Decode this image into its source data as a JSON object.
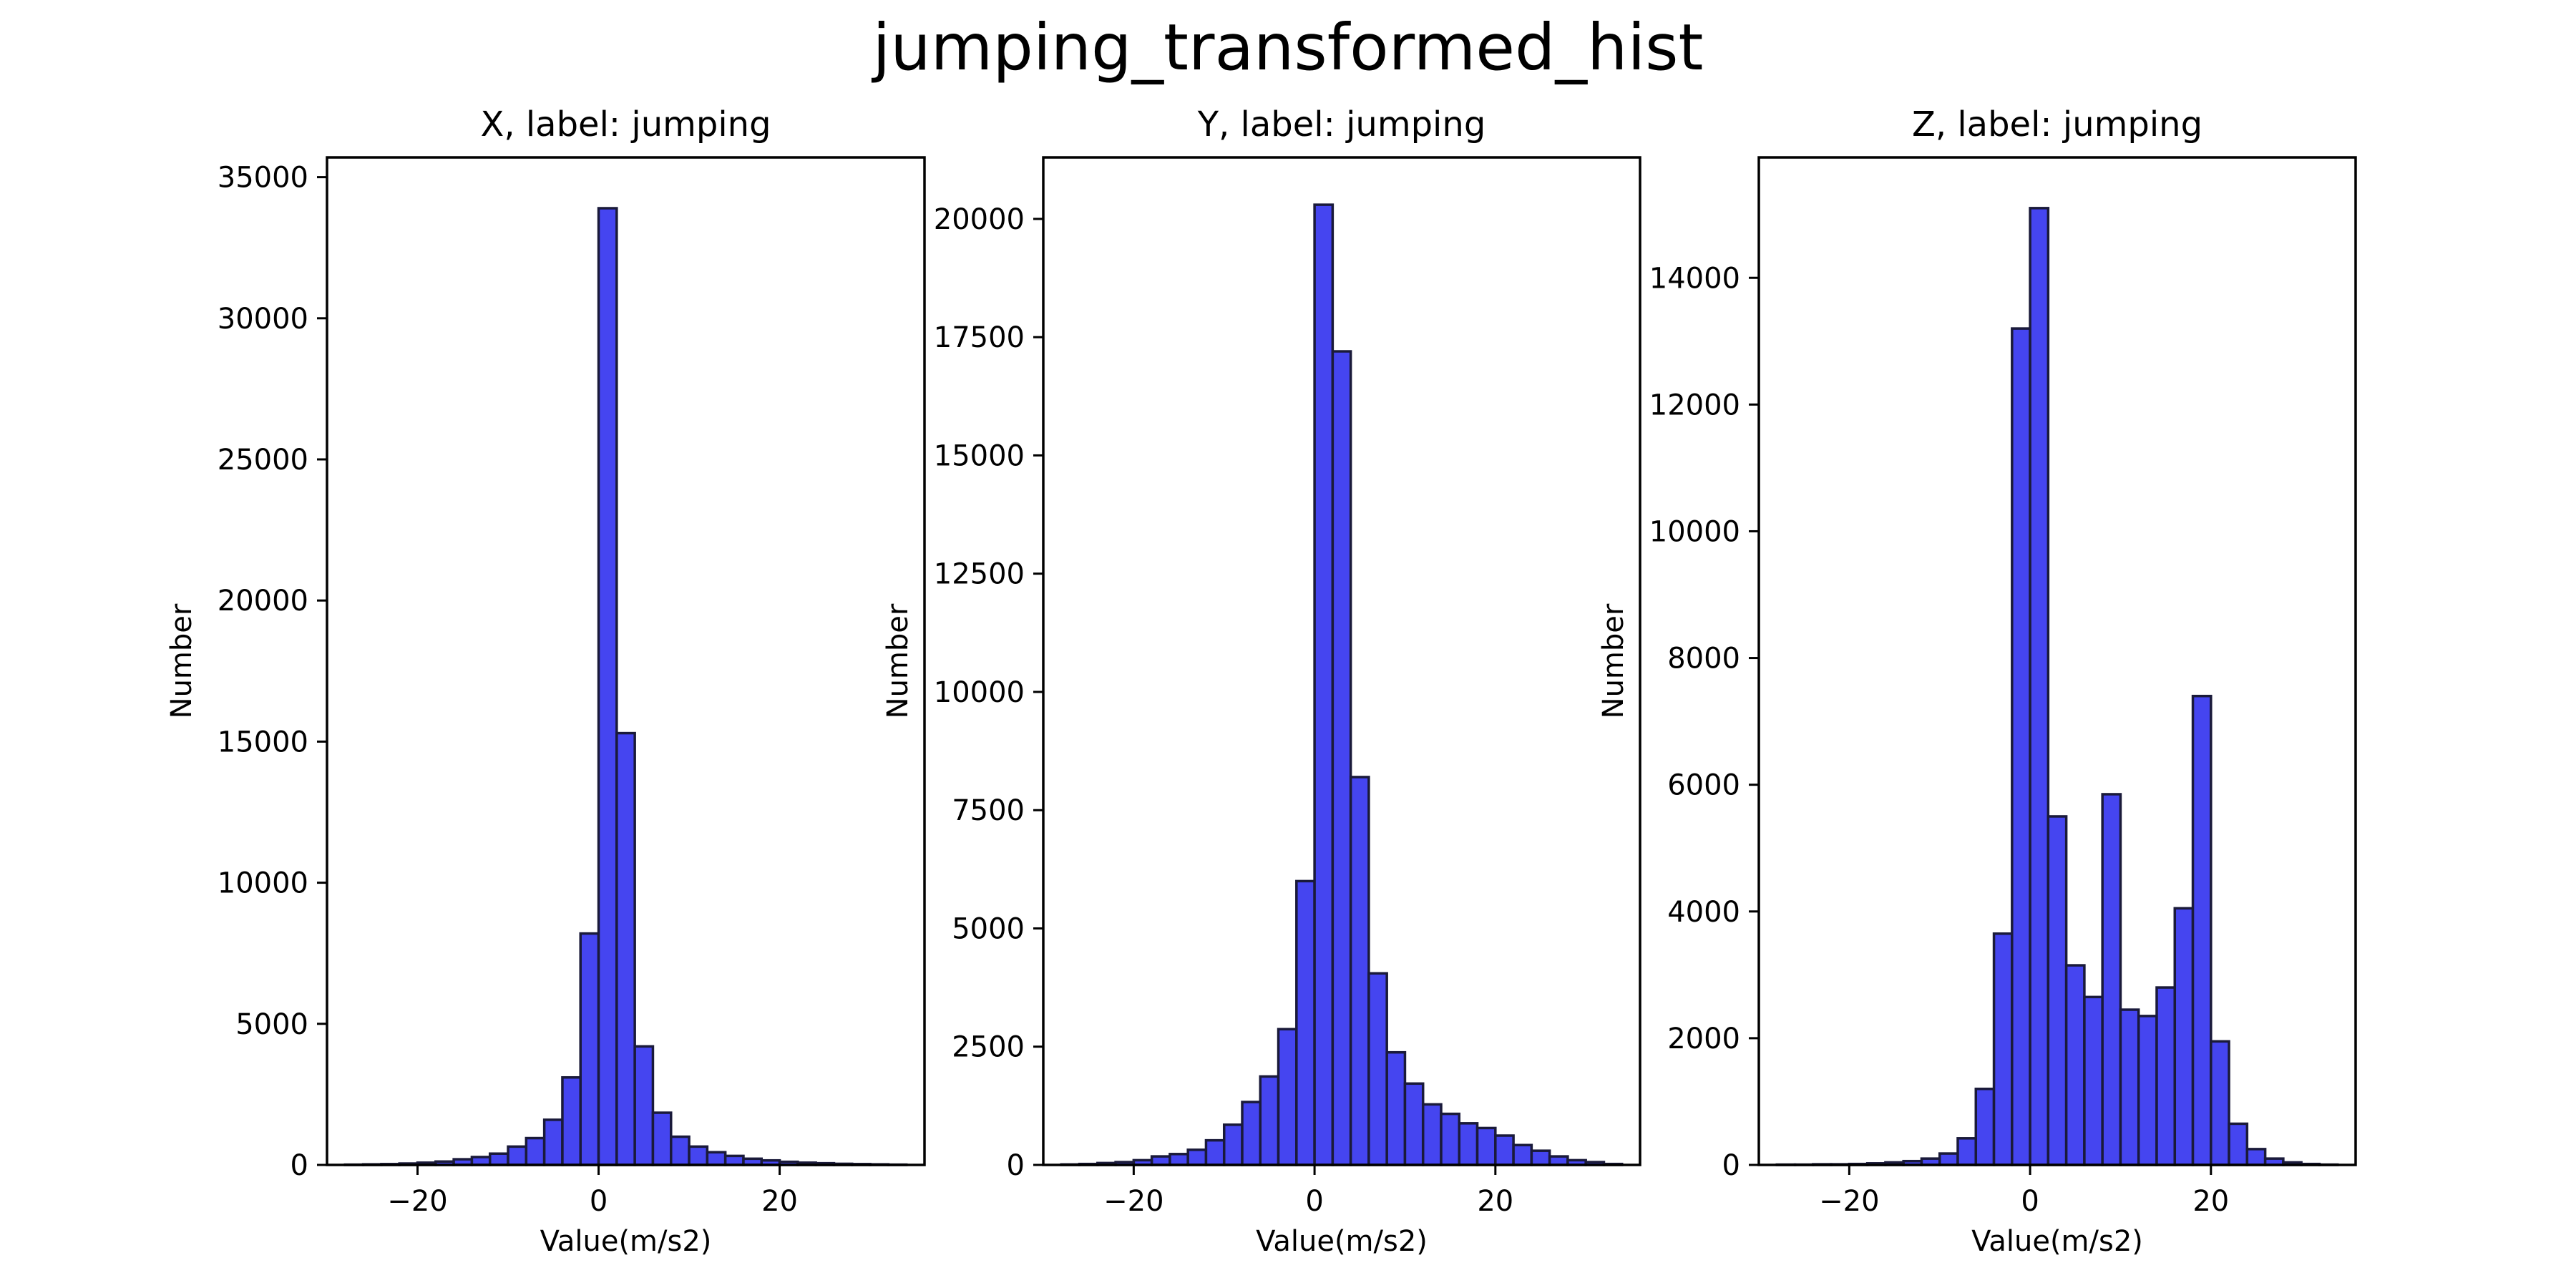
{
  "figure_title": "jumping_transformed_hist",
  "colors": {
    "bar_fill": "#4545f0",
    "bar_edge": "#1a1a3a",
    "axis": "#000000"
  },
  "chart_data": [
    {
      "type": "bar",
      "title": "X, label: jumping",
      "xlabel": "Value(m/s2)",
      "ylabel": "Number",
      "bin_start": -28.0,
      "bin_width": 2.0,
      "xlim": [
        -30,
        36
      ],
      "xticks": [
        -20,
        0,
        20
      ],
      "ylim": [
        0,
        35700
      ],
      "yticks": [
        0,
        5000,
        10000,
        15000,
        20000,
        25000,
        30000,
        35000
      ],
      "values": [
        10,
        20,
        30,
        50,
        80,
        120,
        200,
        280,
        400,
        650,
        950,
        1600,
        3100,
        8200,
        33900,
        15300,
        4200,
        1850,
        1000,
        650,
        450,
        320,
        220,
        160,
        110,
        80,
        60,
        40,
        30,
        20,
        10
      ],
      "grid": false
    },
    {
      "type": "bar",
      "title": "Y, label: jumping",
      "xlabel": "Value(m/s2)",
      "ylabel": "Number",
      "bin_start": -28.0,
      "bin_width": 2.0,
      "xlim": [
        -30,
        36
      ],
      "xticks": [
        -20,
        0,
        20
      ],
      "ylim": [
        0,
        21300
      ],
      "yticks": [
        0,
        2500,
        5000,
        7500,
        10000,
        12500,
        15000,
        17500,
        20000
      ],
      "values": [
        10,
        20,
        40,
        60,
        100,
        180,
        230,
        320,
        520,
        850,
        1330,
        1870,
        2870,
        6000,
        20300,
        17200,
        8200,
        4050,
        2380,
        1720,
        1280,
        1080,
        880,
        780,
        620,
        420,
        300,
        180,
        100,
        60,
        20
      ],
      "grid": false
    },
    {
      "type": "bar",
      "title": "Z, label: jumping",
      "xlabel": "Value(m/s2)",
      "ylabel": "Number",
      "bin_start": -28.0,
      "bin_width": 2.0,
      "xlim": [
        -30,
        36
      ],
      "xticks": [
        -20,
        0,
        20
      ],
      "ylim": [
        0,
        15900
      ],
      "yticks": [
        0,
        2000,
        4000,
        6000,
        8000,
        10000,
        12000,
        14000
      ],
      "values": [
        5,
        5,
        10,
        10,
        15,
        25,
        40,
        60,
        100,
        180,
        420,
        1200,
        3650,
        13200,
        15100,
        5500,
        3150,
        2650,
        5850,
        2450,
        2350,
        2800,
        4050,
        7400,
        1950,
        650,
        250,
        100,
        40,
        15,
        5
      ],
      "grid": false
    }
  ]
}
